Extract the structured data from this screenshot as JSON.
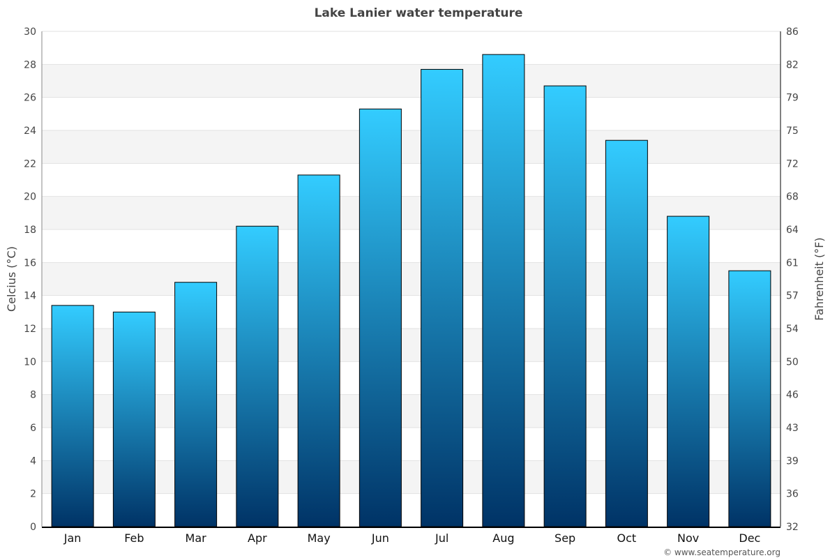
{
  "chart_data": {
    "type": "bar",
    "title": "Lake Lanier water temperature",
    "ylabel": "Celcius (°C)",
    "ylabel_right": "Fahrenheit (°F)",
    "categories": [
      "Jan",
      "Feb",
      "Mar",
      "Apr",
      "May",
      "Jun",
      "Jul",
      "Aug",
      "Sep",
      "Oct",
      "Nov",
      "Dec"
    ],
    "values": [
      13.4,
      13.0,
      14.8,
      18.2,
      21.3,
      25.3,
      27.7,
      28.6,
      26.7,
      23.4,
      18.8,
      15.5
    ],
    "ylim": [
      0,
      30
    ],
    "yticks": [
      0,
      2,
      4,
      6,
      8,
      10,
      12,
      14,
      16,
      18,
      20,
      22,
      24,
      26,
      28,
      30
    ],
    "yticks_right": [
      "32",
      "36",
      "39",
      "43",
      "46",
      "50",
      "54",
      "57",
      "61",
      "64",
      "68",
      "72",
      "75",
      "79",
      "82",
      "86"
    ],
    "grid": true,
    "bar_gradient": [
      "#33ccff",
      "#003366"
    ],
    "band_color": "#f4f4f4",
    "credit": "© www.seatemperature.org"
  }
}
